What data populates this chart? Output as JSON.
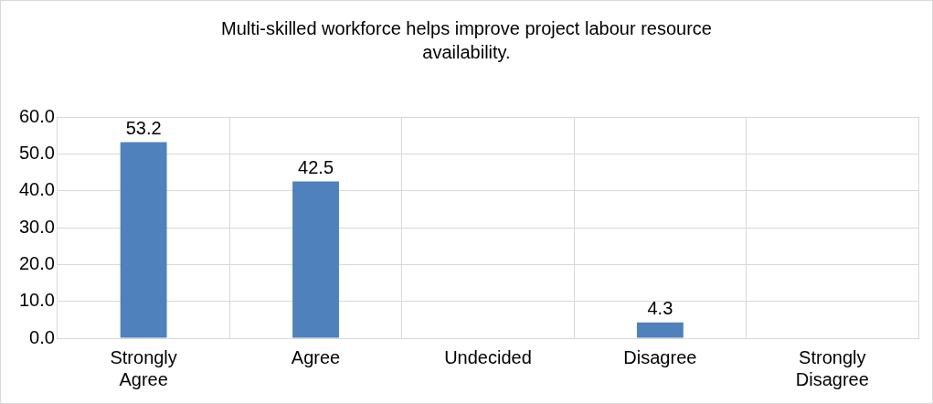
{
  "chart_data": {
    "type": "bar",
    "title": "Multi-skilled workforce helps improve project labour resource availability.",
    "categories": [
      "Strongly Agree",
      "Agree",
      "Undecided",
      "Disagree",
      "Strongly Disagree"
    ],
    "values": [
      53.2,
      42.5,
      0,
      4.3,
      0
    ],
    "value_labels": [
      "53.2",
      "42.5",
      null,
      "4.3",
      null
    ],
    "color": "#4f81bd",
    "ylim": [
      0,
      60
    ],
    "yticks": [
      {
        "value": 0,
        "label": "0.0"
      },
      {
        "value": 10,
        "label": "10.0"
      },
      {
        "value": 20,
        "label": "20.0"
      },
      {
        "value": 30,
        "label": "30.0"
      },
      {
        "value": 40,
        "label": "40.0"
      },
      {
        "value": 50,
        "label": "50.0"
      },
      {
        "value": 60,
        "label": "60.0"
      }
    ],
    "grid": true,
    "legend": false
  }
}
